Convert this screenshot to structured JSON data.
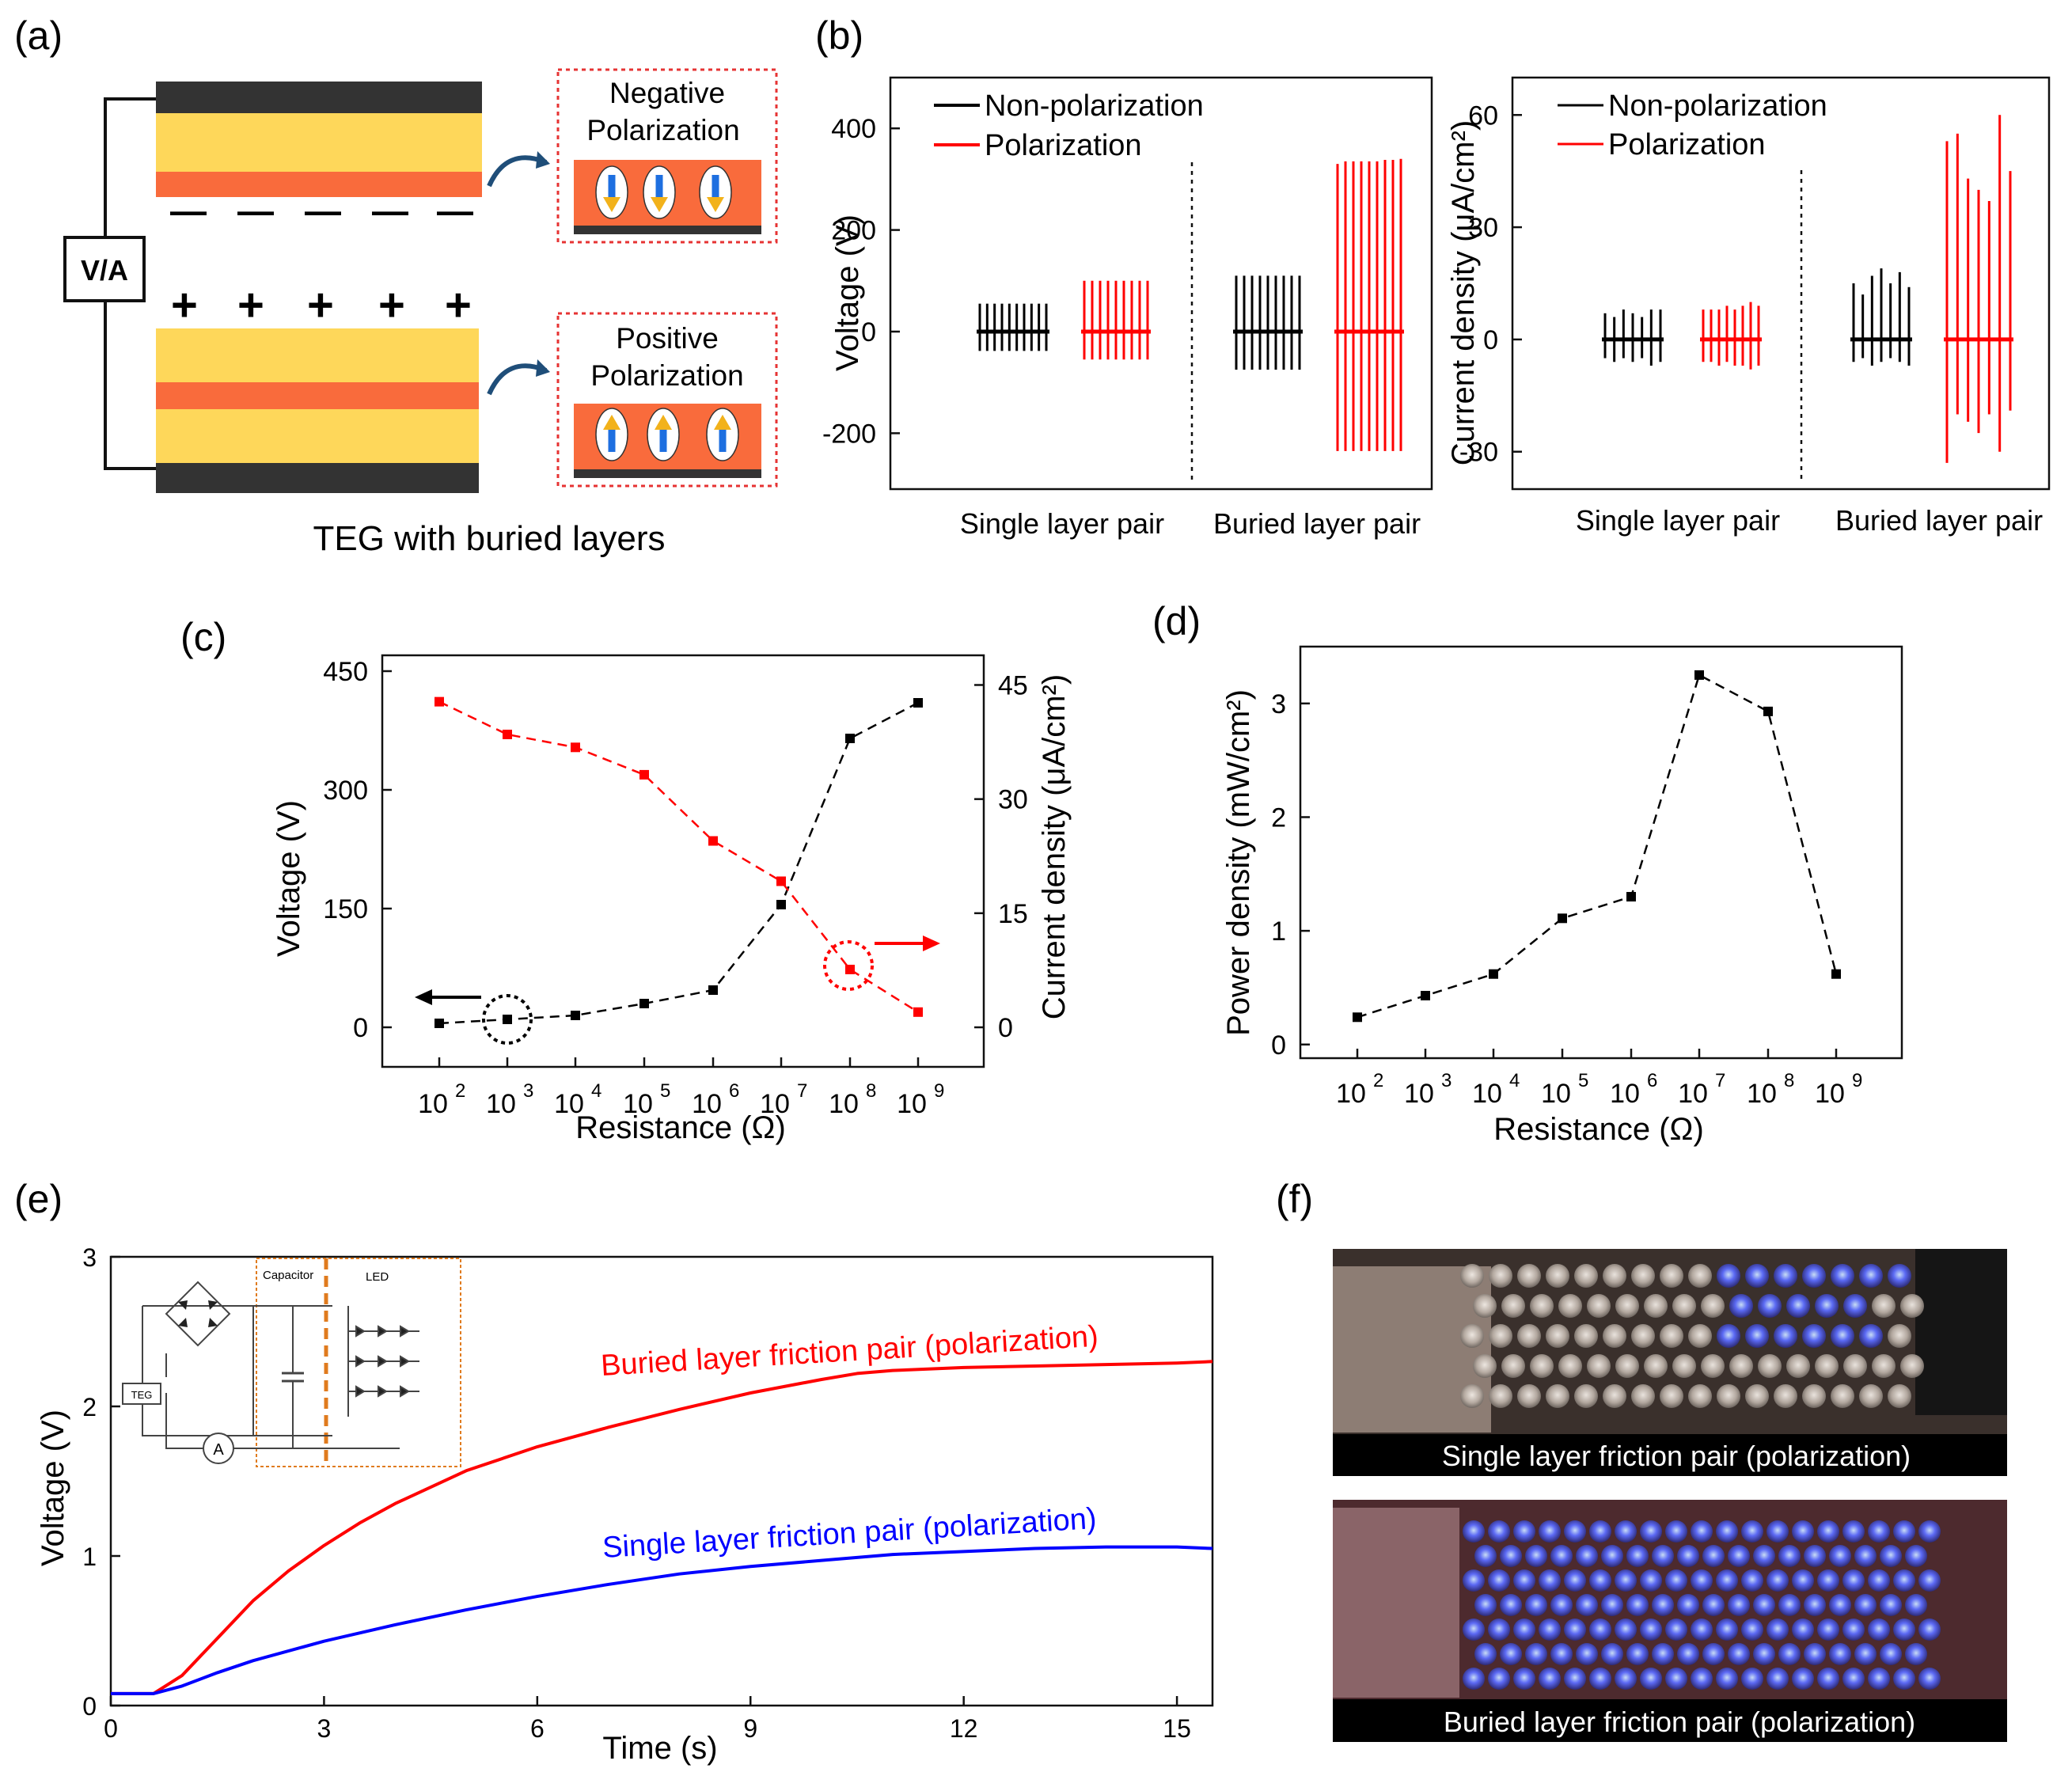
{
  "panels": {
    "a": "(a)",
    "b": "(b)",
    "c": "(c)",
    "d": "(d)",
    "e": "(e)",
    "f": "(f)"
  },
  "panel_a": {
    "meter_label": "V/A",
    "negative_title_line1": "Negative",
    "negative_title_line2": "Polarization",
    "positive_title_line1": "Positive",
    "positive_title_line2": "Polarization",
    "caption": "TEG with buried layers",
    "minus_sign": "—",
    "plus_sign": "+",
    "colors": {
      "electrode": "#333333",
      "friction": "#fed75a",
      "buried": "#f96b3c",
      "border": "#e63333"
    }
  },
  "chart_data": [
    {
      "id": "b-left",
      "type": "line",
      "title": "",
      "ylabel": "Voltage (V)",
      "ylim": [
        -310,
        500
      ],
      "yticks": [
        400,
        200,
        0,
        -200
      ],
      "categories": [
        "Single layer pair",
        "Buried layer pair"
      ],
      "legend": [
        "Non-polarization",
        "Polarization"
      ],
      "series": [
        {
          "name": "Non-polarization",
          "group": "Single layer pair",
          "color": "#000000",
          "peaks": [
            55,
            55,
            55,
            55,
            55,
            55,
            55,
            55,
            55,
            55
          ],
          "troughs": [
            -38,
            -38,
            -38,
            -38,
            -38,
            -38,
            -38,
            -38,
            -38,
            -38
          ]
        },
        {
          "name": "Polarization",
          "group": "Single layer pair",
          "color": "#ff0000",
          "peaks": [
            100,
            100,
            100,
            100,
            100,
            100,
            100,
            100,
            100
          ],
          "troughs": [
            -55,
            -55,
            -55,
            -55,
            -55,
            -55,
            -55,
            -55,
            -55
          ]
        },
        {
          "name": "Non-polarization",
          "group": "Buried layer pair",
          "color": "#000000",
          "peaks": [
            110,
            110,
            110,
            110,
            110,
            110,
            110,
            110,
            110
          ],
          "troughs": [
            -75,
            -75,
            -75,
            -75,
            -75,
            -75,
            -75,
            -75,
            -75
          ]
        },
        {
          "name": "Polarization",
          "group": "Buried layer pair",
          "color": "#ff0000",
          "peaks": [
            330,
            335,
            335,
            335,
            335,
            335,
            338,
            338,
            340
          ],
          "troughs": [
            -235,
            -235,
            -235,
            -235,
            -235,
            -235,
            -235,
            -235,
            -235
          ]
        }
      ]
    },
    {
      "id": "b-right",
      "type": "line",
      "title": "",
      "ylabel": "Current density (μA/cm²)",
      "ylim": [
        -40,
        70
      ],
      "yticks": [
        60,
        30,
        0,
        -30
      ],
      "categories": [
        "Single layer pair",
        "Buried layer pair"
      ],
      "legend": [
        "Non-polarization",
        "Polarization"
      ],
      "series": [
        {
          "name": "Non-polarization",
          "group": "Single layer pair",
          "color": "#000000",
          "peaks": [
            7,
            6,
            8,
            7,
            6,
            8,
            8
          ],
          "troughs": [
            -5,
            -6,
            -5,
            -6,
            -5,
            -7,
            -6
          ]
        },
        {
          "name": "Polarization",
          "group": "Single layer pair",
          "color": "#ff0000",
          "peaks": [
            8,
            8,
            8,
            9,
            8,
            9,
            10,
            9
          ],
          "troughs": [
            -6,
            -6,
            -7,
            -6,
            -7,
            -7,
            -8,
            -7
          ]
        },
        {
          "name": "Non-polarization",
          "group": "Buried layer pair",
          "color": "#000000",
          "peaks": [
            15,
            12,
            17,
            19,
            15,
            18,
            14
          ],
          "troughs": [
            -6,
            -5,
            -7,
            -6,
            -5,
            -6,
            -7
          ]
        },
        {
          "name": "Polarization",
          "group": "Buried layer pair",
          "color": "#ff0000",
          "peaks": [
            53,
            55,
            43,
            40,
            37,
            60,
            45
          ],
          "troughs": [
            -33,
            -20,
            -22,
            -25,
            -20,
            -30,
            -19
          ]
        }
      ]
    },
    {
      "id": "c",
      "type": "line",
      "title": "",
      "xlabel": "Resistance (Ω)",
      "x": [
        2,
        3,
        4,
        5,
        6,
        7,
        8,
        9
      ],
      "xtick_base": "10",
      "xtick_exps": [
        "2",
        "3",
        "4",
        "5",
        "6",
        "7",
        "8",
        "9"
      ],
      "ylabel": "Voltage (V)",
      "ylim": [
        -50,
        470
      ],
      "yticks": [
        450,
        300,
        150,
        0
      ],
      "y2label": "Current density (μA/cm²)",
      "y2lim": [
        -5.2,
        48.9
      ],
      "y2ticks": [
        45,
        30,
        15,
        0
      ],
      "series": [
        {
          "name": "Voltage",
          "axis": "left",
          "color": "#000000",
          "values": [
            5,
            10,
            15,
            30,
            47,
            155,
            365,
            410
          ]
        },
        {
          "name": "Current density",
          "axis": "right",
          "color": "#ff0000",
          "values": [
            42.8,
            38.5,
            36.8,
            33.2,
            24.5,
            19.2,
            7.6,
            2.0
          ]
        }
      ],
      "annotations": [
        "left arrow: Voltage axis",
        "right arrow: Current density axis"
      ]
    },
    {
      "id": "d",
      "type": "line",
      "title": "",
      "xlabel": "Resistance (Ω)",
      "x": [
        2,
        3,
        4,
        5,
        6,
        7,
        8,
        9
      ],
      "xtick_base": "10",
      "xtick_exps": [
        "2",
        "3",
        "4",
        "5",
        "6",
        "7",
        "8",
        "9"
      ],
      "ylabel": "Power density (mW/cm²)",
      "ylim": [
        -0.12,
        3.5
      ],
      "yticks": [
        3,
        2,
        1,
        0
      ],
      "series": [
        {
          "name": "Power density",
          "color": "#000000",
          "values": [
            0.24,
            0.43,
            0.62,
            1.11,
            1.3,
            3.25,
            2.93,
            0.62
          ]
        }
      ]
    },
    {
      "id": "e",
      "type": "line",
      "title": "",
      "xlabel": "Time (s)",
      "xlim": [
        0,
        15.5
      ],
      "xticks": [
        0,
        3,
        6,
        9,
        12,
        15
      ],
      "ylabel": "Voltage (V)",
      "ylim": [
        0,
        3
      ],
      "yticks": [
        0,
        1,
        2,
        3
      ],
      "series": [
        {
          "name": "Buried layer friction pair (polarization)",
          "color": "#ff0000",
          "x": [
            0,
            0.6,
            1.0,
            1.5,
            2,
            2.5,
            3,
            3.5,
            4,
            5,
            6,
            7,
            8,
            9,
            10,
            10.5,
            11,
            12,
            13,
            14,
            15,
            15.5
          ],
          "values": [
            0.08,
            0.08,
            0.2,
            0.45,
            0.7,
            0.9,
            1.07,
            1.22,
            1.35,
            1.57,
            1.73,
            1.86,
            1.98,
            2.09,
            2.18,
            2.22,
            2.24,
            2.26,
            2.27,
            2.28,
            2.29,
            2.3
          ]
        },
        {
          "name": "Single layer friction pair (polarization)",
          "color": "#0000ff",
          "x": [
            0,
            0.6,
            1.0,
            1.5,
            2,
            3,
            4,
            5,
            6,
            7,
            8,
            9,
            10,
            11,
            12,
            13,
            14,
            15,
            15.5
          ],
          "values": [
            0.08,
            0.08,
            0.13,
            0.22,
            0.3,
            0.43,
            0.54,
            0.64,
            0.73,
            0.81,
            0.88,
            0.93,
            0.97,
            1.01,
            1.03,
            1.05,
            1.06,
            1.06,
            1.05
          ]
        }
      ],
      "inset_labels": {
        "capacitor": "Capacitor",
        "led": "LED",
        "teg": "TEG",
        "ammeter": "A"
      }
    }
  ],
  "panel_f": {
    "top_caption": "Single layer friction pair (polarization)",
    "bottom_caption": "Buried layer friction pair (polarization)",
    "led_glow": "#6a6cff"
  }
}
